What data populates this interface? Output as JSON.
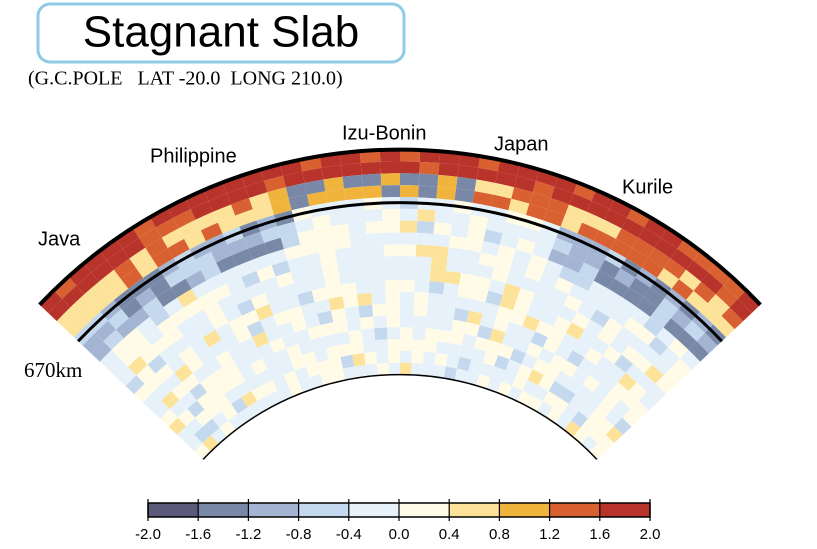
{
  "title": "Stagnant Slab",
  "subtitle": "(G.C.POLE   LAT -20.0  LONG 210.0)",
  "regions": [
    "Java",
    "Philippine",
    "Izu-Bonin",
    "Japan",
    "Kurile"
  ],
  "depth_label": "670km",
  "colorbar": {
    "ticks": [
      {
        "value": -2,
        "label": "-2.0"
      },
      -1.6,
      -1.2,
      -0.8,
      -0.4,
      {
        "value": 0,
        "label": "0.0"
      },
      0.4,
      0.8,
      1.2,
      1.6,
      {
        "value": 2,
        "label": "2.0"
      }
    ],
    "colors": [
      "#5b5a7a",
      "#7a88a8",
      "#a3b5d3",
      "#c5d9ee",
      "#e6f1fa",
      "#fffbe6",
      "#fde39a",
      "#f0b43c",
      "#d96030",
      "#b8332a"
    ]
  }
}
